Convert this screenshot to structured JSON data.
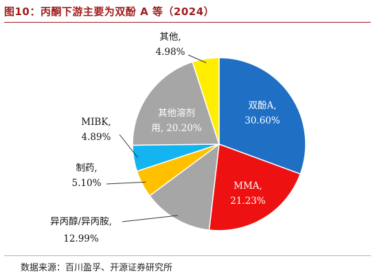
{
  "figure_title": "图10：丙酮下游主要为双酚 A 等（2024）",
  "source_note": "数据来源：百川盈孚、开源证券研究所",
  "chart_data": {
    "type": "pie",
    "title": "图10：丙酮下游主要为双酚 A 等（2024）",
    "slices": [
      {
        "name": "双酚A",
        "value": 30.6,
        "label": "30.60%",
        "color": "#1f6fc5"
      },
      {
        "name": "MMA",
        "value": 21.23,
        "label": "21.23%",
        "color": "#ee1111"
      },
      {
        "name": "异丙醇/异丙胺",
        "value": 12.99,
        "label": "12.99%",
        "color": "#a6a6a6"
      },
      {
        "name": "制药",
        "value": 5.1,
        "label": "5.10%",
        "color": "#ffc000"
      },
      {
        "name": "MIBK",
        "value": 4.89,
        "label": "4.89%",
        "color": "#14b4f0"
      },
      {
        "name": "其他溶剂用",
        "value": 20.2,
        "label": "20.20%",
        "color": "#a6a6a6"
      },
      {
        "name": "其他",
        "value": 4.98,
        "label": "4.98%",
        "color": "#ffee00"
      }
    ],
    "slice_labels": {
      "bpa": [
        "双酚A,",
        "30.60%"
      ],
      "mma": [
        "MMA,",
        "21.23%"
      ],
      "ipa": [
        "异丙醇/异丙胺,",
        "12.99%"
      ],
      "pharma": [
        "制药,",
        "5.10%"
      ],
      "mibk": [
        "MIBK,",
        "4.89%"
      ],
      "solvent": [
        "其他溶剂",
        "用, 20.20%"
      ],
      "other": [
        "其他,",
        "4.98%"
      ]
    },
    "legend": "none"
  }
}
